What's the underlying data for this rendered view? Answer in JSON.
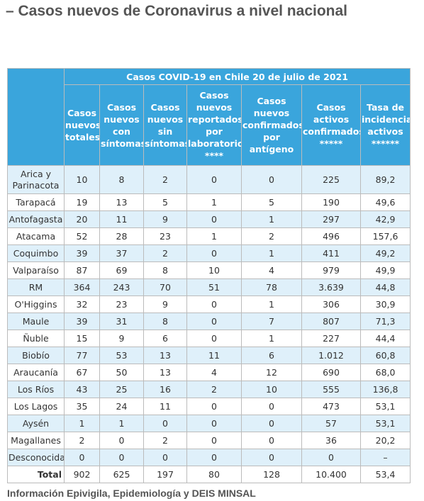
{
  "header": {
    "title": "– Casos nuevos de Coronavirus a nivel nacional"
  },
  "table": {
    "caption": "Casos COVID-19 en Chile 20 de julio de 2021",
    "columns": [
      "Casos nuevos totales",
      "Casos nuevos con síntomas",
      "Casos nuevos sin síntomas",
      "Casos nuevos reportados por laboratorio ****",
      "Casos nuevos confirmados por antígeno",
      "Casos activos confirmados *****",
      "Tasa de incidencia activos ******"
    ],
    "rows": [
      [
        "Arica y Parinacota",
        "10",
        "8",
        "2",
        "0",
        "0",
        "225",
        "89,2"
      ],
      [
        "Tarapacá",
        "19",
        "13",
        "5",
        "1",
        "5",
        "190",
        "49,6"
      ],
      [
        "Antofagasta",
        "20",
        "11",
        "9",
        "0",
        "1",
        "297",
        "42,9"
      ],
      [
        "Atacama",
        "52",
        "28",
        "23",
        "1",
        "2",
        "496",
        "157,6"
      ],
      [
        "Coquimbo",
        "39",
        "37",
        "2",
        "0",
        "1",
        "411",
        "49,2"
      ],
      [
        "Valparaíso",
        "87",
        "69",
        "8",
        "10",
        "4",
        "979",
        "49,9"
      ],
      [
        "RM",
        "364",
        "243",
        "70",
        "51",
        "78",
        "3.639",
        "44,8"
      ],
      [
        "O'Higgins",
        "32",
        "23",
        "9",
        "0",
        "1",
        "306",
        "30,9"
      ],
      [
        "Maule",
        "39",
        "31",
        "8",
        "0",
        "7",
        "807",
        "71,3"
      ],
      [
        "Ñuble",
        "15",
        "9",
        "6",
        "0",
        "1",
        "227",
        "44,4"
      ],
      [
        "Biobío",
        "77",
        "53",
        "13",
        "11",
        "6",
        "1.012",
        "60,8"
      ],
      [
        "Araucanía",
        "67",
        "50",
        "13",
        "4",
        "12",
        "690",
        "68,0"
      ],
      [
        "Los Ríos",
        "43",
        "25",
        "16",
        "2",
        "10",
        "555",
        "136,8"
      ],
      [
        "Los Lagos",
        "35",
        "24",
        "11",
        "0",
        "0",
        "473",
        "53,1"
      ],
      [
        "Aysén",
        "1",
        "1",
        "0",
        "0",
        "0",
        "57",
        "53,1"
      ],
      [
        "Magallanes",
        "2",
        "0",
        "2",
        "0",
        "0",
        "36",
        "20,2"
      ],
      [
        "Desconocida",
        "0",
        "0",
        "0",
        "0",
        "0",
        "0",
        "–"
      ]
    ],
    "total": [
      "Total",
      "902",
      "625",
      "197",
      "80",
      "128",
      "10.400",
      "53,4"
    ]
  },
  "footer": "Información Epivigila, Epidemiología y DEIS MINSAL"
}
